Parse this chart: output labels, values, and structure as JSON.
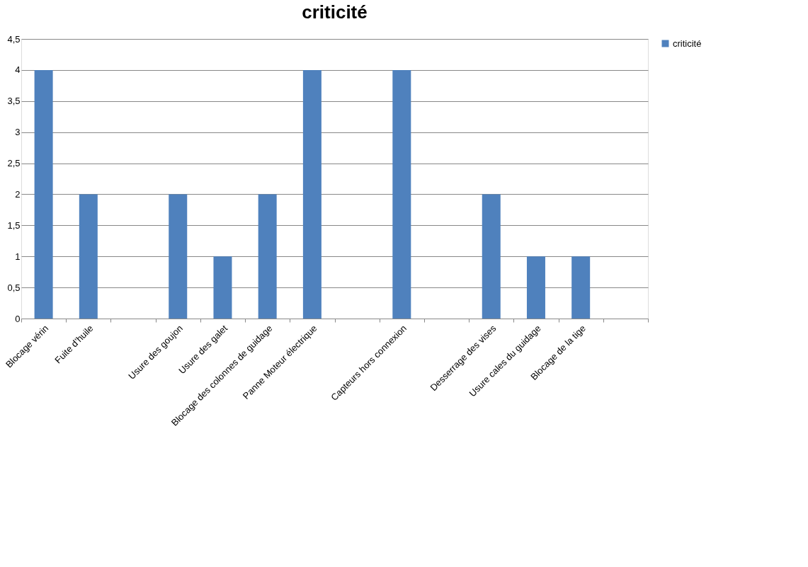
{
  "chart_data": {
    "type": "bar",
    "title": "criticité",
    "categories": [
      "Blocage vérin",
      "Fuite d’huile",
      null,
      "Usure des goujon",
      "Usure des galet",
      "Blocage des colonnes de guidage",
      "Panne Moteur électrique",
      null,
      "Capteurs hors connexion",
      null,
      "Desserrage des vises",
      "Usure cales du guidage",
      "Blocage de la tige",
      null
    ],
    "series": [
      {
        "name": "criticité",
        "color": "#4f81bd",
        "values": [
          4,
          2,
          null,
          2,
          1,
          2,
          4,
          null,
          4,
          null,
          2,
          1,
          1,
          null
        ]
      }
    ],
    "ylim": [
      0,
      4.5
    ],
    "yticks": [
      0,
      {
        "value": 0.5,
        "label": "0,5"
      },
      1,
      {
        "value": 1.5,
        "label": "1,5"
      },
      2,
      {
        "value": 2.5,
        "label": "2,5"
      },
      3,
      {
        "value": 3.5,
        "label": "3,5"
      },
      4,
      {
        "value": 4.5,
        "label": "4,5"
      }
    ],
    "grid": "y",
    "legend": "right"
  }
}
